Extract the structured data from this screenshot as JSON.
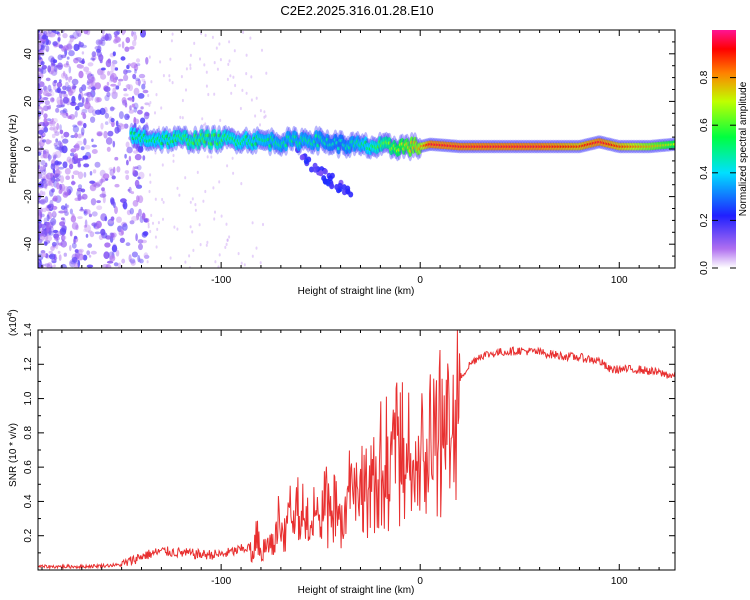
{
  "title": "C2E2.2025.316.01.28.E10",
  "chart_data": [
    {
      "type": "heatmap",
      "name": "spectrogram",
      "xlabel": "Height of straight line (km)",
      "ylabel": "Frequency (Hz)",
      "xlim": [
        -192,
        128
      ],
      "ylim": [
        -50,
        50
      ],
      "xticks": [
        -100,
        0,
        100
      ],
      "yticks": [
        -40,
        -20,
        0,
        20,
        40
      ],
      "xtick_labels": [
        "-100",
        "0",
        "100"
      ],
      "ytick_labels": [
        "-40",
        "-20",
        "0",
        "20",
        "40"
      ],
      "colorbar": {
        "label": "Normalized spectral amplitude",
        "range": [
          0,
          1
        ],
        "ticks": [
          0.0,
          0.2,
          0.4,
          0.6,
          0.8
        ],
        "tick_labels": [
          "0.0",
          "0.2",
          "0.4",
          "0.6",
          "0.8"
        ],
        "colormap": [
          "#ffffff",
          "#8a2be2",
          "#0000ff",
          "#00ffff",
          "#00ff00",
          "#ffff00",
          "#ff0000",
          "#ff1493"
        ]
      },
      "ridge": {
        "description_points_x": [
          -145,
          -130,
          -110,
          -90,
          -70,
          -55,
          -40,
          -25,
          -10,
          0,
          5,
          20,
          40,
          60,
          80,
          90,
          100,
          115,
          128
        ],
        "frequency_y": [
          5,
          4,
          4,
          4,
          3,
          4,
          2,
          1,
          1,
          1,
          2,
          1,
          1,
          1,
          1,
          3,
          1,
          1,
          2
        ],
        "amplitude": [
          0.55,
          0.55,
          0.6,
          0.55,
          0.5,
          0.5,
          0.45,
          0.55,
          0.7,
          0.8,
          0.95,
          0.95,
          0.95,
          0.95,
          0.9,
          0.95,
          0.9,
          0.8,
          0.7
        ]
      }
    },
    {
      "type": "line",
      "name": "snr",
      "xlabel": "Height of straight line (km)",
      "ylabel": "SNR (10 * v/v)",
      "yscale_label": "(x10",
      "yscale_exponent": "4",
      "xlim": [
        -192,
        128
      ],
      "ylim": [
        0,
        1.4
      ],
      "xticks": [
        -100,
        0,
        100
      ],
      "yticks": [
        0.2,
        0.4,
        0.6,
        0.8,
        1.0,
        1.2,
        1.4
      ],
      "xtick_labels": [
        "-100",
        "0",
        "100"
      ],
      "ytick_labels": [
        "0.2",
        "0.4",
        "0.6",
        "0.8",
        "1.0",
        "1.2",
        "1.4"
      ],
      "color": "#e83030",
      "series": [
        {
          "name": "SNR",
          "x": [
            -192,
            -170,
            -150,
            -140,
            -130,
            -120,
            -110,
            -100,
            -90,
            -80,
            -75,
            -70,
            -65,
            -60,
            -55,
            -50,
            -45,
            -40,
            -35,
            -30,
            -25,
            -20,
            -15,
            -10,
            -5,
            0,
            5,
            10,
            15,
            20,
            25,
            30,
            40,
            50,
            60,
            70,
            80,
            90,
            95,
            100,
            110,
            120,
            128
          ],
          "y": [
            0.02,
            0.02,
            0.03,
            0.08,
            0.11,
            0.1,
            0.09,
            0.09,
            0.12,
            0.15,
            0.28,
            0.3,
            0.42,
            0.35,
            0.4,
            0.33,
            0.45,
            0.38,
            0.55,
            0.5,
            0.62,
            0.72,
            0.75,
            0.8,
            0.72,
            0.78,
            0.86,
            0.95,
            0.9,
            1.12,
            1.2,
            1.25,
            1.27,
            1.28,
            1.27,
            1.25,
            1.24,
            1.22,
            1.17,
            1.17,
            1.17,
            1.15,
            1.13
          ]
        }
      ]
    }
  ]
}
